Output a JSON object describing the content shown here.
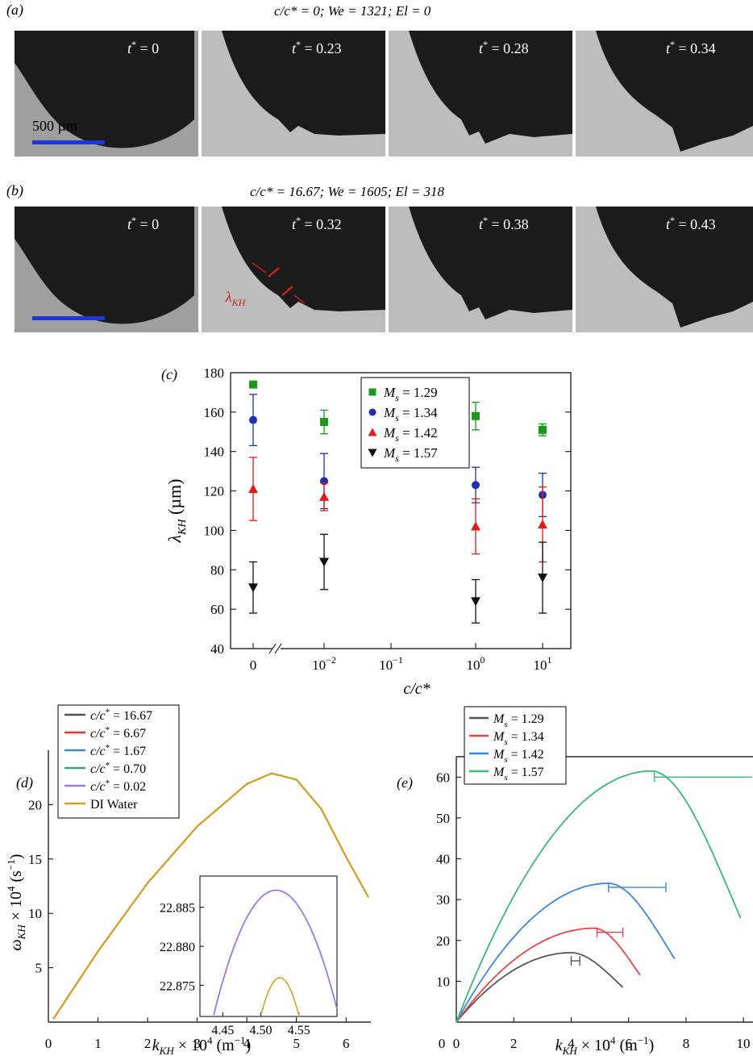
{
  "panel_a": {
    "label": "(a)",
    "caption": "c/c* = 0; We = 1321; El = 0",
    "frames": [
      "t* = 0",
      "t* = 0.23",
      "t* = 0.28",
      "t* = 0.34"
    ],
    "scale_label": "500 µm",
    "scale_color": "#1f35d8"
  },
  "panel_b": {
    "label": "(b)",
    "caption": "c/c* = 16.67; We = 1605; El = 318",
    "frames": [
      "t* = 0",
      "t* = 0.32",
      "t* = 0.38",
      "t* = 0.43"
    ],
    "annotation": "λKH",
    "annotation_color": "#cc1f1f"
  },
  "chart_data": [
    {
      "panel": "(c)",
      "type": "scatter",
      "ylabel": "λKH (µm)",
      "xlabel": "c/c*",
      "ylim": [
        40,
        180
      ],
      "yticks": [
        40,
        60,
        80,
        100,
        120,
        140,
        160,
        180
      ],
      "xticklabels": [
        "0",
        "10−2",
        "10−1",
        "100",
        "101"
      ],
      "x_categories": [
        "0",
        "0.02",
        "1.67",
        "16.67"
      ],
      "legend_position": "top-center",
      "series": [
        {
          "name": "Ms = 1.29",
          "color": "#1a9a1a",
          "marker": "square",
          "y": [
            174,
            155,
            158,
            151
          ],
          "err": [
            0,
            6,
            7,
            3
          ]
        },
        {
          "name": "Ms = 1.34",
          "color": "#1f2fb0",
          "marker": "circle",
          "y": [
            156,
            125,
            123,
            118
          ],
          "err": [
            13,
            14,
            9,
            11
          ]
        },
        {
          "name": "Ms = 1.42",
          "color": "#e41a1a",
          "marker": "triangle-up",
          "y": [
            121,
            117,
            102,
            103
          ],
          "err": [
            16,
            7,
            14,
            19
          ]
        },
        {
          "name": "Ms = 1.57",
          "color": "#111111",
          "marker": "triangle-down",
          "y": [
            71,
            84,
            64,
            76
          ],
          "err": [
            13,
            14,
            11,
            18
          ]
        }
      ]
    },
    {
      "panel": "(d)",
      "type": "line",
      "ylabel": "ωKH × 104 (s−1)",
      "xlabel": "kKH × 104 (m−1)",
      "xlim": [
        0,
        6.5
      ],
      "ylim": [
        0,
        25
      ],
      "xticks": [
        0,
        1,
        2,
        3,
        4,
        5,
        6
      ],
      "yticks": [
        5,
        10,
        15,
        20
      ],
      "legend_position": "top-left",
      "series": [
        {
          "name": "c/c* = 16.67",
          "color": "#555555"
        },
        {
          "name": "c/c* = 6.67",
          "color": "#ee3333"
        },
        {
          "name": "c/c* = 1.67",
          "color": "#3a86e0"
        },
        {
          "name": "c/c* = 0.70",
          "color": "#2daa6a"
        },
        {
          "name": "c/c* = 0.02",
          "color": "#a07be0"
        },
        {
          "name": "DI Water",
          "color": "#d4a020"
        }
      ],
      "curve": {
        "x": [
          0.1,
          1,
          2,
          3,
          4,
          4.5,
          5,
          5.5,
          6,
          6.45
        ],
        "y": [
          0.3,
          6.5,
          12.8,
          18.0,
          21.9,
          22.88,
          22.3,
          19.6,
          15.2,
          11.5
        ]
      },
      "inset": {
        "xlim": [
          4.42,
          4.6
        ],
        "ylim": [
          22.871,
          22.889
        ],
        "xticks": [
          "4.45",
          "4.50",
          "4.55"
        ],
        "yticks": [
          "22.875",
          "22.880",
          "22.885"
        ],
        "upper_peak": [
          4.52,
          22.8872
        ],
        "lower_peak": [
          4.525,
          22.876
        ]
      }
    },
    {
      "panel": "(e)",
      "type": "line",
      "xlabel": "kKH × 104 (m−1)",
      "xlim": [
        0,
        10.5
      ],
      "ylim": [
        0,
        65
      ],
      "xticks": [
        0,
        2,
        4,
        6,
        8,
        10
      ],
      "xticklabels": [
        "0",
        "2",
        "4",
        "6",
        "8",
        "10"
      ],
      "yticks": [
        10,
        20,
        30,
        40,
        50,
        60
      ],
      "legend_position": "top-left",
      "series": [
        {
          "name": "Ms = 1.29",
          "color": "#555555",
          "peak_k": 4.0,
          "peak_w": 17,
          "k_max": 5.8,
          "end_w": 8.5,
          "err_x": [
            4.0,
            4.3
          ],
          "err_y": 15
        },
        {
          "name": "Ms = 1.34",
          "color": "#ee4444",
          "peak_k": 4.8,
          "peak_w": 23,
          "k_max": 6.4,
          "end_w": 11.5,
          "err_x": [
            4.9,
            5.8
          ],
          "err_y": 22
        },
        {
          "name": "Ms = 1.42",
          "color": "#3a86e0",
          "peak_k": 5.3,
          "peak_w": 34,
          "k_max": 7.6,
          "end_w": 15.5,
          "err_x": [
            5.3,
            7.3
          ],
          "err_y": 33
        },
        {
          "name": "Ms = 1.57",
          "color": "#3ab87a",
          "peak_k": 6.8,
          "peak_w": 61.5,
          "k_max": 9.9,
          "end_w": 25.5,
          "err_x": [
            6.9,
            10.5
          ],
          "err_y": 60
        }
      ]
    }
  ]
}
